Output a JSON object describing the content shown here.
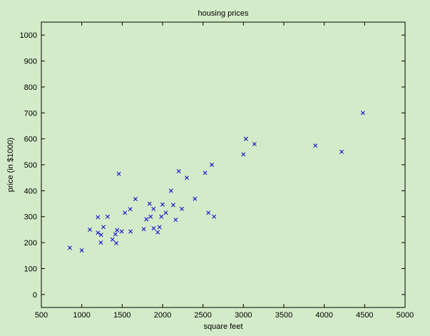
{
  "colors": {
    "background": "#d4ebc9",
    "marker": "#0000cc",
    "axis": "#000000"
  },
  "chart_data": {
    "type": "scatter",
    "title": "housing prices",
    "xlabel": "square feet",
    "ylabel": "price (in $1000)",
    "xlim": [
      500,
      5000
    ],
    "ylim": [
      -50,
      1050
    ],
    "xticks": [
      500,
      1000,
      1500,
      2000,
      2500,
      3000,
      3500,
      4000,
      4500,
      5000
    ],
    "yticks": [
      0,
      100,
      200,
      300,
      400,
      500,
      600,
      700,
      800,
      900,
      1000
    ],
    "grid": false,
    "marker": "x",
    "points": [
      [
        852,
        180
      ],
      [
        1000,
        170
      ],
      [
        1100,
        250
      ],
      [
        1200,
        298
      ],
      [
        1200,
        238
      ],
      [
        1236,
        200
      ],
      [
        1239,
        230
      ],
      [
        1268,
        260
      ],
      [
        1320,
        300
      ],
      [
        1380,
        212
      ],
      [
        1416,
        232
      ],
      [
        1427,
        198
      ],
      [
        1437,
        248
      ],
      [
        1458,
        465
      ],
      [
        1494,
        243
      ],
      [
        1534,
        315
      ],
      [
        1600,
        329
      ],
      [
        1604,
        243
      ],
      [
        1664,
        368
      ],
      [
        1767,
        252
      ],
      [
        1800,
        290
      ],
      [
        1839,
        350
      ],
      [
        1852,
        300
      ],
      [
        1888,
        330
      ],
      [
        1890,
        255
      ],
      [
        1940,
        240
      ],
      [
        1962,
        260
      ],
      [
        1985,
        300
      ],
      [
        2000,
        347
      ],
      [
        2040,
        315
      ],
      [
        2104,
        400
      ],
      [
        2132,
        345
      ],
      [
        2162,
        288
      ],
      [
        2200,
        475
      ],
      [
        2238,
        330
      ],
      [
        2300,
        450
      ],
      [
        2400,
        369
      ],
      [
        2526,
        469
      ],
      [
        2567,
        315
      ],
      [
        2609,
        500
      ],
      [
        2637,
        300
      ],
      [
        3000,
        540
      ],
      [
        3031,
        600
      ],
      [
        3137,
        580
      ],
      [
        3890,
        574
      ],
      [
        4215,
        550
      ],
      [
        4478,
        700
      ]
    ]
  }
}
